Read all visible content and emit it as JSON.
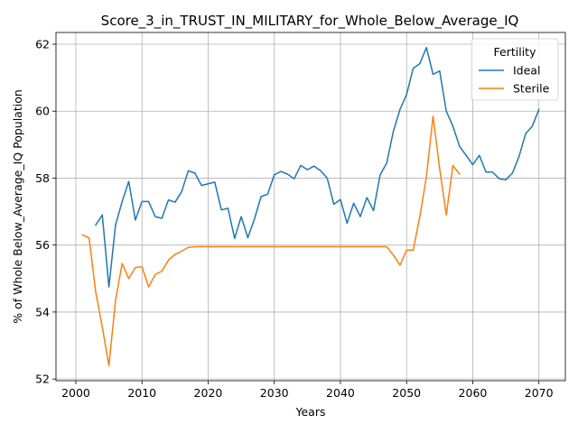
{
  "chart_data": {
    "type": "line",
    "title": "Score_3_in_TRUST_IN_MILITARY_for_Whole_Below_Average_IQ",
    "xlabel": "Years",
    "ylabel": "% of Whole Below_Average_IQ Population",
    "xlim": [
      1997,
      2074
    ],
    "ylim": [
      51.95,
      62.35
    ],
    "xticks": [
      2000,
      2010,
      2020,
      2030,
      2040,
      2050,
      2060,
      2070
    ],
    "yticks": [
      52,
      54,
      56,
      58,
      60,
      62
    ],
    "grid": true,
    "legend": {
      "title": "Fertility",
      "placement": "top-right"
    },
    "series": [
      {
        "name": "Ideal",
        "color": "#1f77b4",
        "x": [
          2003,
          2004,
          2005,
          2006,
          2007,
          2008,
          2009,
          2010,
          2011,
          2012,
          2013,
          2014,
          2015,
          2016,
          2017,
          2018,
          2019,
          2020,
          2021,
          2022,
          2023,
          2024,
          2025,
          2026,
          2027,
          2028,
          2029,
          2030,
          2031,
          2032,
          2033,
          2034,
          2035,
          2036,
          2037,
          2038,
          2039,
          2040,
          2041,
          2042,
          2043,
          2044,
          2045,
          2046,
          2047,
          2048,
          2049,
          2050,
          2051,
          2052,
          2053,
          2054,
          2055,
          2056,
          2057,
          2058,
          2059,
          2060,
          2061,
          2062,
          2063,
          2064,
          2065,
          2066,
          2067,
          2068,
          2069,
          2070
        ],
        "values": [
          56.6,
          56.9,
          54.75,
          56.6,
          57.3,
          57.9,
          56.75,
          57.3,
          57.3,
          56.85,
          56.8,
          57.35,
          57.28,
          57.6,
          58.22,
          58.15,
          57.78,
          57.83,
          57.88,
          57.05,
          57.1,
          56.2,
          56.85,
          56.22,
          56.78,
          57.45,
          57.52,
          58.1,
          58.2,
          58.12,
          57.98,
          58.38,
          58.25,
          58.36,
          58.22,
          58.0,
          57.22,
          57.36,
          56.65,
          57.25,
          56.85,
          57.42,
          57.03,
          58.1,
          58.45,
          59.4,
          60.05,
          60.5,
          61.28,
          61.42,
          61.9,
          61.1,
          61.2,
          60.0,
          59.55,
          58.95,
          58.68,
          58.4,
          58.68,
          58.18,
          58.18,
          57.98,
          57.95,
          58.15,
          58.65,
          59.33,
          59.55,
          60.05
        ]
      },
      {
        "name": "Sterile",
        "color": "#ff7f0e",
        "x": [
          2001,
          2002,
          2003,
          2004,
          2005,
          2006,
          2007,
          2008,
          2009,
          2010,
          2011,
          2012,
          2013,
          2014,
          2015,
          2016,
          2017,
          2018,
          2019,
          2020,
          2021,
          2022,
          2023,
          2024,
          2025,
          2026,
          2027,
          2028,
          2029,
          2030,
          2031,
          2032,
          2033,
          2034,
          2035,
          2036,
          2037,
          2038,
          2039,
          2040,
          2041,
          2042,
          2043,
          2044,
          2045,
          2046,
          2047,
          2048,
          2049,
          2050,
          2051,
          2052,
          2053,
          2054,
          2055,
          2056,
          2057,
          2058
        ],
        "values": [
          56.3,
          56.22,
          54.6,
          53.55,
          52.4,
          54.35,
          55.45,
          55.0,
          55.33,
          55.35,
          54.75,
          55.12,
          55.22,
          55.55,
          55.72,
          55.82,
          55.93,
          55.95,
          55.95,
          55.95,
          55.95,
          55.95,
          55.95,
          55.95,
          55.95,
          55.95,
          55.95,
          55.95,
          55.95,
          55.95,
          55.95,
          55.95,
          55.95,
          55.95,
          55.95,
          55.95,
          55.95,
          55.95,
          55.95,
          55.95,
          55.95,
          55.95,
          55.95,
          55.95,
          55.95,
          55.95,
          55.95,
          55.7,
          55.4,
          55.85,
          55.85,
          56.85,
          58.05,
          59.85,
          58.28,
          56.9,
          58.38,
          58.12
        ]
      }
    ]
  }
}
